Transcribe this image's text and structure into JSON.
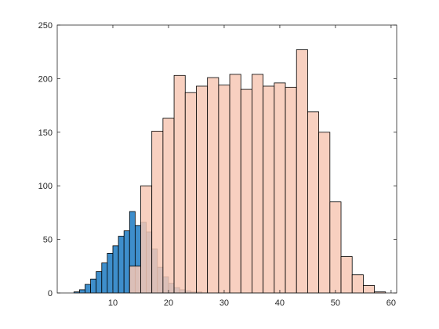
{
  "chart_data": {
    "type": "histogram",
    "title": "",
    "xlabel": "",
    "ylabel": "",
    "xlim": [
      0,
      61
    ],
    "ylim": [
      0,
      250
    ],
    "x_ticks": [
      10,
      20,
      30,
      40,
      50,
      60
    ],
    "y_ticks": [
      0,
      50,
      100,
      150,
      200,
      250
    ],
    "grid": false,
    "legend": "none",
    "series": [
      {
        "color": "#3e8ecb",
        "edges": [
          3,
          4,
          5,
          6,
          7,
          8,
          9,
          10,
          11,
          12,
          13,
          14,
          15,
          16,
          17,
          18,
          19,
          20,
          21,
          22,
          23,
          24,
          25,
          26,
          27
        ],
        "values": [
          1,
          3,
          8,
          13,
          20,
          28,
          37,
          44,
          53,
          58,
          76,
          63,
          66,
          57,
          41,
          24,
          15,
          9,
          5,
          3,
          2,
          1,
          1,
          0
        ]
      },
      {
        "color": "#f7c8b5",
        "opacity": 0.85,
        "edges": [
          13,
          15,
          17,
          19,
          21,
          23,
          25,
          27,
          29,
          31,
          33,
          35,
          37,
          39,
          41,
          43,
          45,
          47,
          49,
          51,
          53,
          55,
          57,
          59
        ],
        "values": [
          25,
          100,
          151,
          163,
          203,
          187,
          193,
          201,
          194,
          204,
          190,
          204,
          193,
          196,
          192,
          227,
          169,
          150,
          85,
          34,
          17,
          7,
          1
        ]
      }
    ]
  }
}
